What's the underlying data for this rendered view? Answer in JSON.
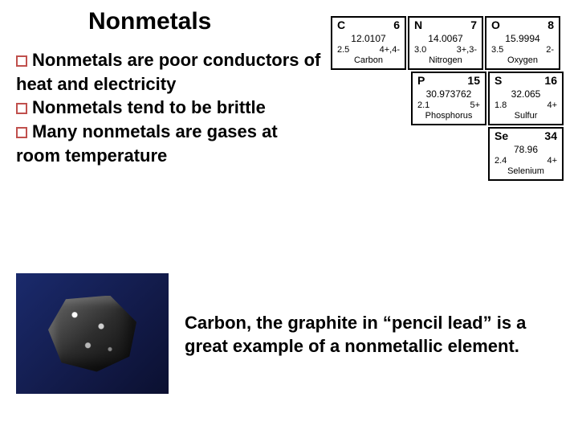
{
  "title": {
    "text": "Nonmetals",
    "fontsize": 30
  },
  "bullets": {
    "fontsize": 22,
    "marker_color": "#c0504d",
    "items": [
      "Nonmetals are poor conductors of heat and electricity",
      "Nonmetals tend to be brittle",
      "Many nonmetals are gases at room temperature"
    ]
  },
  "caption": {
    "text": "Carbon, the graphite in “pencil lead” is a great example of a nonmetallic element.",
    "fontsize": 22
  },
  "periodic": {
    "border_color": "#000000",
    "cell_bg": "#ffffff",
    "rows": [
      [
        {
          "symbol": "C",
          "num": "6",
          "mass": "12.0107",
          "a": "2.5",
          "b": "4+,4-",
          "name": "Carbon"
        },
        {
          "symbol": "N",
          "num": "7",
          "mass": "14.0067",
          "a": "3.0",
          "b": "3+,3-",
          "name": "Nitrogen"
        },
        {
          "symbol": "O",
          "num": "8",
          "mass": "15.9994",
          "a": "3.5",
          "b": "2-",
          "name": "Oxygen"
        }
      ],
      [
        {
          "symbol": "P",
          "num": "15",
          "mass": "30.973762",
          "a": "2.1",
          "b": "5+",
          "name": "Phosphorus"
        },
        {
          "symbol": "S",
          "num": "16",
          "mass": "32.065",
          "a": "1.8",
          "b": "4+",
          "name": "Sulfur"
        }
      ],
      [
        {
          "symbol": "Se",
          "num": "34",
          "mass": "78.96",
          "a": "2.4",
          "b": "4+",
          "name": "Selenium"
        }
      ]
    ]
  },
  "photo": {
    "bg_gradient": [
      "#1a2a6c",
      "#0b1030"
    ],
    "subject": "graphite-rock"
  }
}
